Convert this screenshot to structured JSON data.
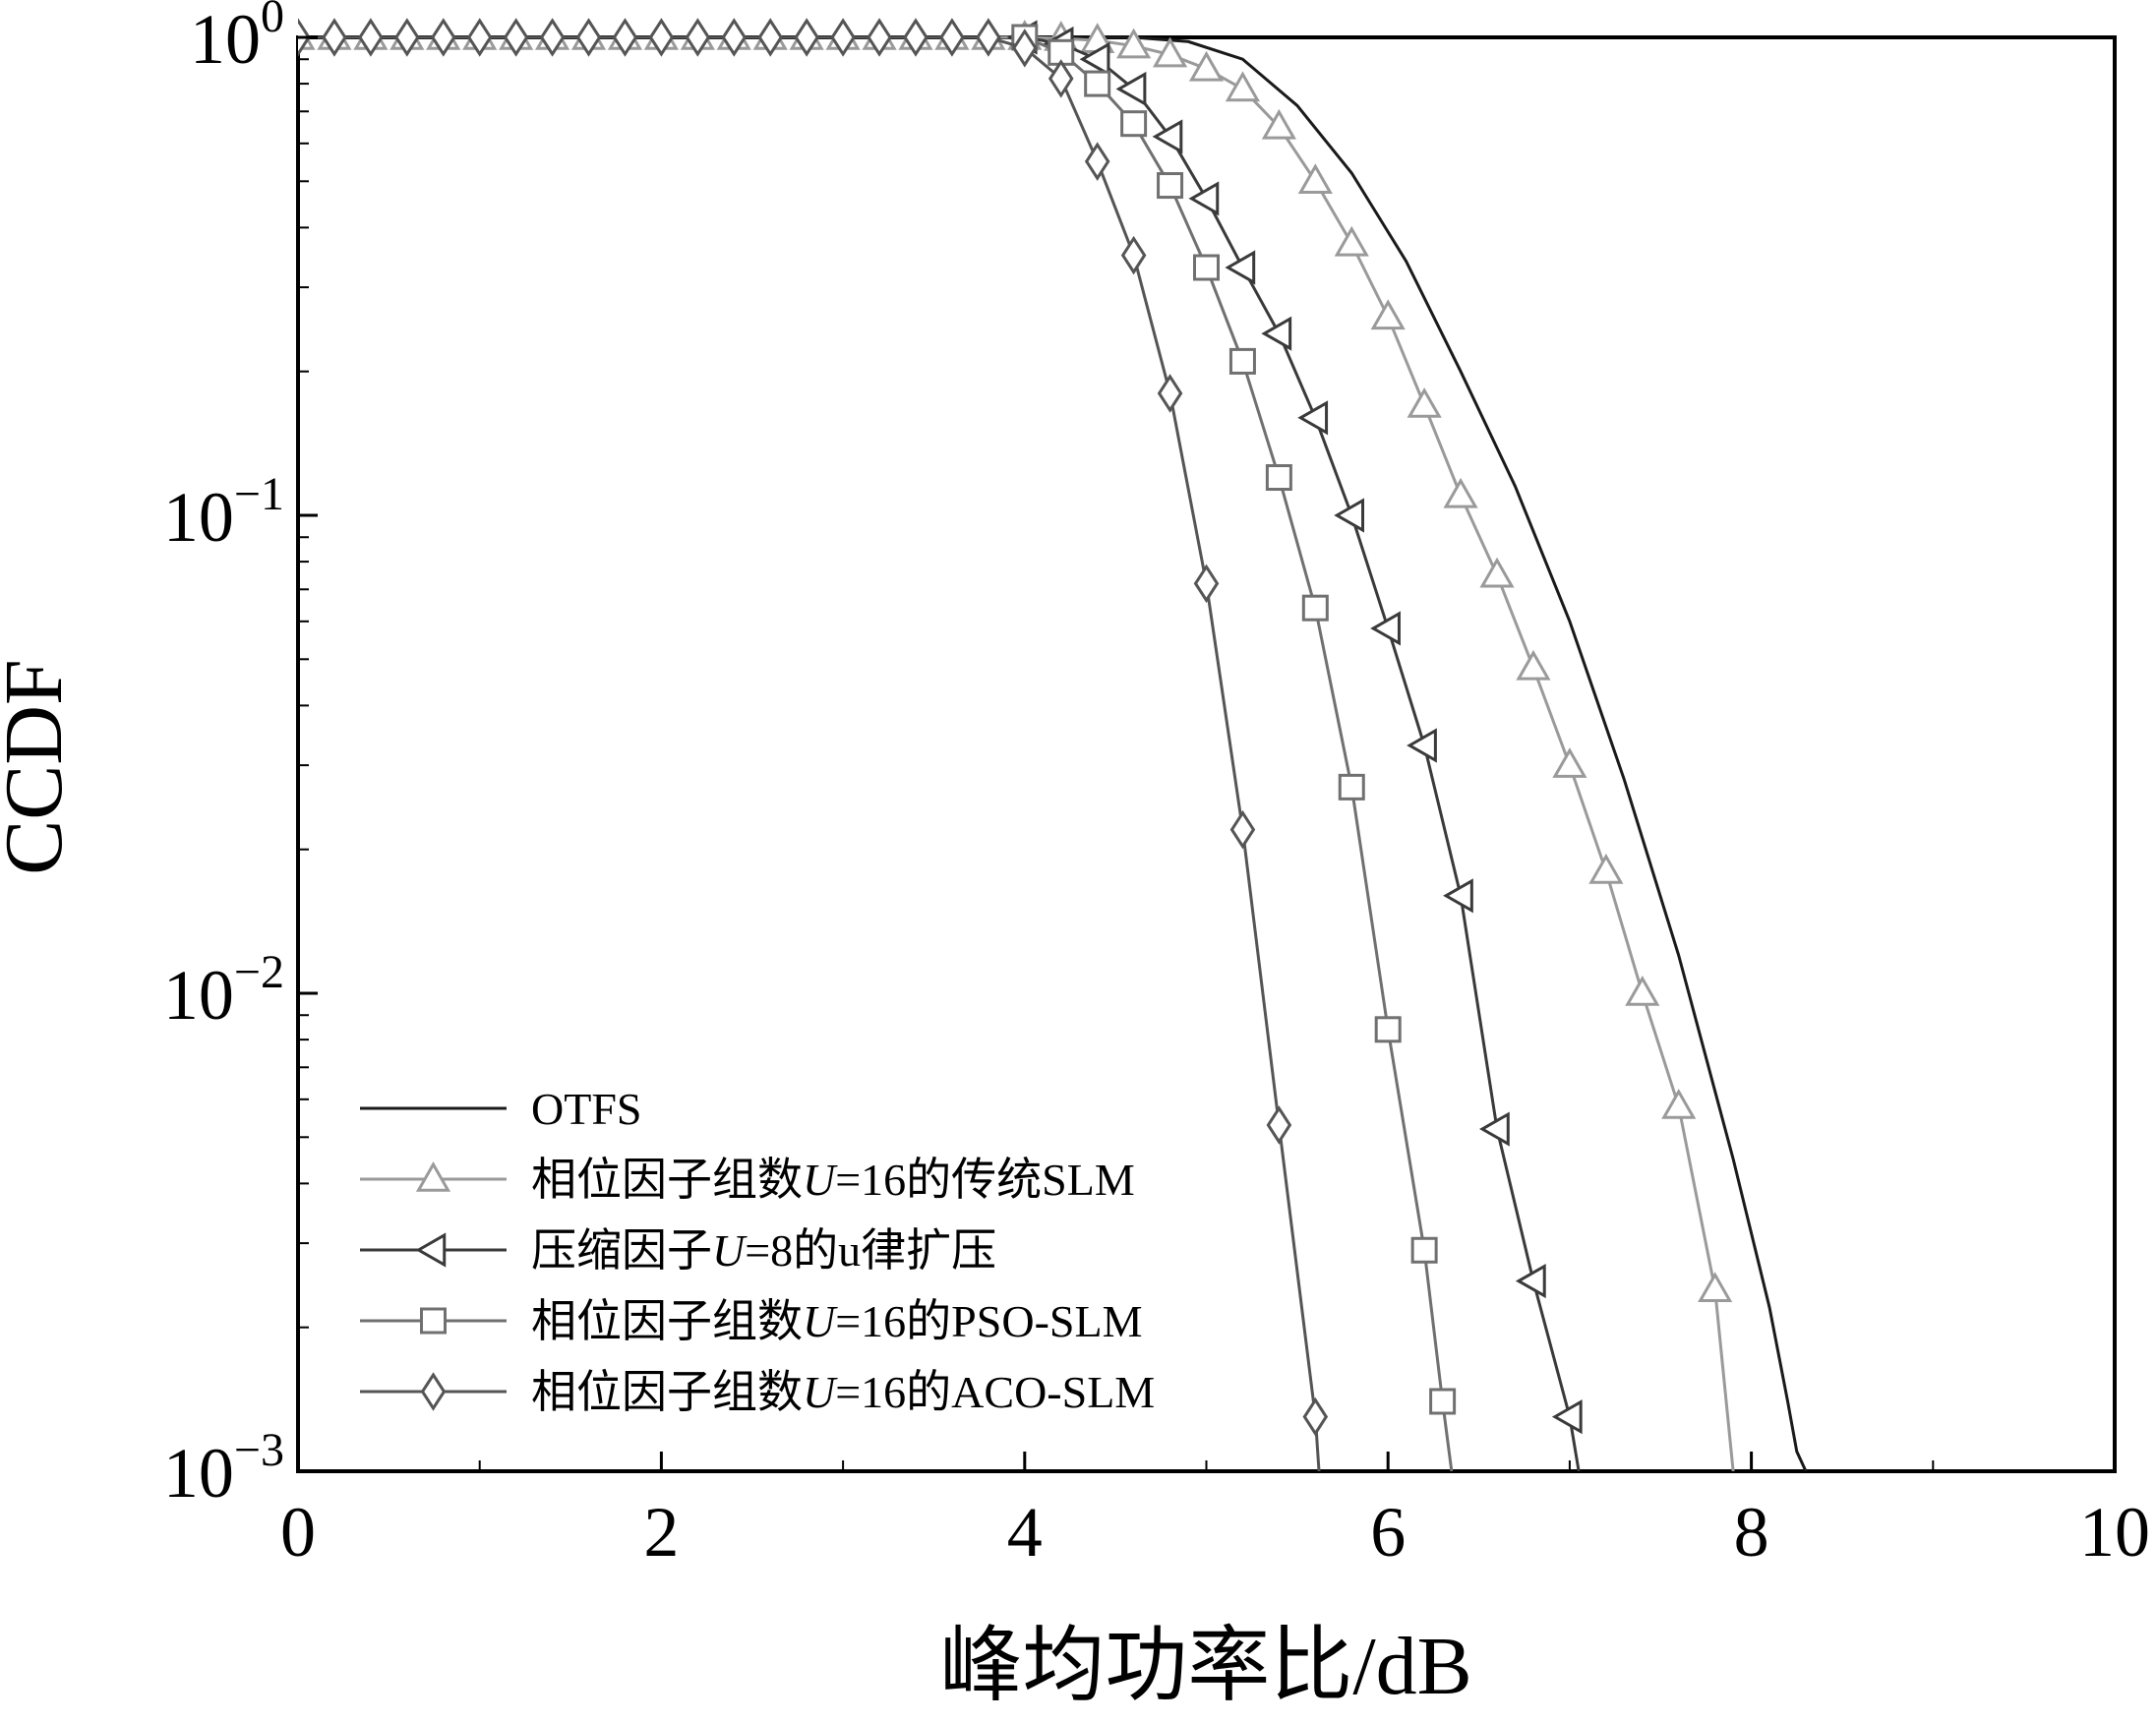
{
  "chart_data": {
    "type": "line",
    "title": "",
    "xlabel": "峰均功率比/dB",
    "ylabel": "CCDF",
    "xlim": [
      0,
      10
    ],
    "ylim": [
      0.001,
      1
    ],
    "yscale": "log",
    "x_ticks": [
      "0",
      "2",
      "4",
      "6",
      "8",
      "10"
    ],
    "y_ticks": [
      {
        "base": "10",
        "exp": "0"
      },
      {
        "base": "10",
        "exp": "−1"
      },
      {
        "base": "10",
        "exp": "−2"
      },
      {
        "base": "10",
        "exp": "−3"
      }
    ],
    "legend_position": "bottom-left",
    "grid": false,
    "series": [
      {
        "name": "OTFS",
        "color": "#1a1a1a",
        "marker": "none",
        "x": [
          0,
          4.6,
          4.9,
          5.2,
          5.5,
          5.8,
          6.1,
          6.4,
          6.7,
          7.0,
          7.3,
          7.6,
          7.9,
          8.1,
          8.2,
          8.25,
          8.3
        ],
        "y": [
          1,
          1,
          0.98,
          0.9,
          0.72,
          0.52,
          0.34,
          0.2,
          0.115,
          0.06,
          0.028,
          0.012,
          0.0045,
          0.0022,
          0.0014,
          0.0011,
          0.001
        ]
      },
      {
        "name": "相位因子组数U=16的传统SLM",
        "label_parts": [
          "相位因子组数",
          "U",
          "=16的传统SLM"
        ],
        "color": "#9a9a9a",
        "marker": "triangle-up",
        "x": [
          0,
          0.2,
          0.4,
          0.6,
          0.8,
          1.0,
          1.2,
          1.4,
          1.6,
          1.8,
          2.0,
          2.2,
          2.4,
          2.6,
          2.8,
          3.0,
          3.2,
          3.4,
          3.6,
          3.8,
          4.0,
          4.2,
          4.4,
          4.6,
          4.8,
          5.0,
          5.2,
          5.4,
          5.6,
          5.8,
          6.0,
          6.2,
          6.4,
          6.6,
          6.8,
          7.0,
          7.2,
          7.4,
          7.6,
          7.8,
          7.9
        ],
        "y": [
          1,
          1,
          1,
          1,
          1,
          1,
          1,
          1,
          1,
          1,
          1,
          1,
          1,
          1,
          1,
          1,
          1,
          1,
          1,
          1,
          1,
          0.995,
          0.985,
          0.96,
          0.92,
          0.86,
          0.78,
          0.65,
          0.5,
          0.37,
          0.26,
          0.17,
          0.11,
          0.075,
          0.048,
          0.03,
          0.018,
          0.01,
          0.0058,
          0.0024,
          0.001
        ],
        "marker_every": 1
      },
      {
        "name": "压缩因子U=8的u律扩压",
        "label_parts": [
          "压缩因子",
          "U",
          "=8的u律扩压"
        ],
        "color": "#3a3a3a",
        "marker": "triangle-left",
        "x": [
          4.0,
          4.2,
          4.4,
          4.6,
          4.8,
          5.0,
          5.2,
          5.4,
          5.6,
          5.8,
          6.0,
          6.2,
          6.4,
          6.6,
          6.8,
          7.0,
          7.05
        ],
        "y": [
          1,
          0.97,
          0.9,
          0.78,
          0.62,
          0.46,
          0.33,
          0.24,
          0.16,
          0.1,
          0.058,
          0.033,
          0.016,
          0.0052,
          0.0025,
          0.0013,
          0.001
        ]
      },
      {
        "name": "相位因子组数U=16的PSO-SLM",
        "label_parts": [
          "相位因子组数",
          "U",
          "=16的PSO-SLM"
        ],
        "color": "#707070",
        "marker": "square",
        "x": [
          4.0,
          4.2,
          4.4,
          4.6,
          4.8,
          5.0,
          5.2,
          5.4,
          5.6,
          5.8,
          6.0,
          6.2,
          6.3,
          6.35
        ],
        "y": [
          1,
          0.93,
          0.8,
          0.66,
          0.49,
          0.33,
          0.21,
          0.12,
          0.064,
          0.027,
          0.0084,
          0.0029,
          0.0014,
          0.001
        ]
      },
      {
        "name": "相位因子组数U=16的ACO-SLM",
        "label_parts": [
          "相位因子组数",
          "U",
          "=16的ACO-SLM"
        ],
        "color": "#555555",
        "marker": "diamond",
        "x": [
          0,
          0.2,
          0.4,
          0.6,
          0.8,
          1.0,
          1.2,
          1.4,
          1.6,
          1.8,
          2.0,
          2.2,
          2.4,
          2.6,
          2.8,
          3.0,
          3.2,
          3.4,
          3.6,
          3.8,
          4.0,
          4.2,
          4.4,
          4.6,
          4.8,
          5.0,
          5.2,
          5.4,
          5.6,
          5.62
        ],
        "y": [
          1,
          1,
          1,
          1,
          1,
          1,
          1,
          1,
          1,
          1,
          1,
          1,
          1,
          1,
          1,
          1,
          1,
          1,
          1,
          1,
          0.95,
          0.82,
          0.55,
          0.35,
          0.18,
          0.072,
          0.022,
          0.0053,
          0.0013,
          0.001
        ]
      }
    ]
  }
}
